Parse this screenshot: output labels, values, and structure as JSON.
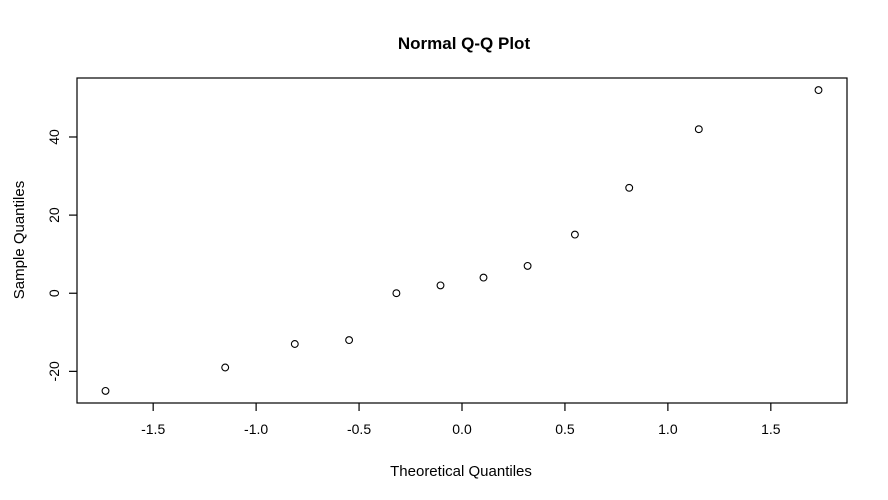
{
  "figure": {
    "background_color": "#ffffff",
    "foreground_color": "#000000"
  },
  "chart_data": {
    "type": "scatter",
    "title": "Normal Q-Q Plot",
    "xlabel": "Theoretical Quantiles",
    "ylabel": "Sample Quantiles",
    "grid": false,
    "legend": "none",
    "marker": "open-circle",
    "marker_color": "#000000",
    "xlim": [
      -1.87,
      1.87
    ],
    "ylim": [
      -28.1,
      55.1
    ],
    "x_ticks": [
      -1.5,
      -1.0,
      -0.5,
      0.0,
      0.5,
      1.0,
      1.5
    ],
    "x_tick_labels": [
      "-1.5",
      "-1.0",
      "-0.5",
      "0.0",
      "0.5",
      "1.0",
      "1.5"
    ],
    "y_ticks": [
      -20,
      0,
      20,
      40
    ],
    "y_tick_labels": [
      "-20",
      "0",
      "20",
      "40"
    ],
    "n_points": 12,
    "points": [
      {
        "x": -1.7317,
        "y": -25
      },
      {
        "x": -1.1503,
        "y": -19
      },
      {
        "x": -0.8122,
        "y": -13
      },
      {
        "x": -0.5485,
        "y": -12
      },
      {
        "x": -0.3186,
        "y": 0
      },
      {
        "x": -0.1046,
        "y": 2
      },
      {
        "x": 0.1046,
        "y": 4
      },
      {
        "x": 0.3186,
        "y": 7
      },
      {
        "x": 0.5485,
        "y": 15
      },
      {
        "x": 0.8122,
        "y": 27
      },
      {
        "x": 1.1503,
        "y": 42
      },
      {
        "x": 1.7317,
        "y": 52
      }
    ],
    "sample_values_sorted": [
      -25,
      -19,
      -13,
      -12,
      0,
      2,
      4,
      7,
      15,
      27,
      42,
      52
    ]
  }
}
